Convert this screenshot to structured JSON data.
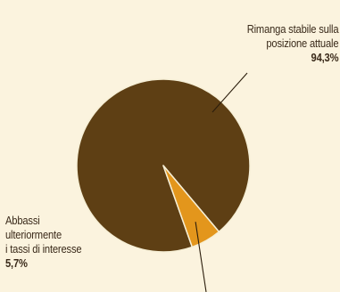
{
  "chart_data": {
    "type": "pie",
    "slices": [
      {
        "label_lines": [
          "Rimanga stabile sulla",
          "posizione attuale"
        ],
        "value": 94.3,
        "display": "94,3%",
        "color": "#5e3f14"
      },
      {
        "label_lines": [
          "Abbassi",
          "ulteriormente",
          "i tassi di interesse"
        ],
        "value": 5.7,
        "display": "5,7%",
        "color": "#e3961c"
      }
    ],
    "legend": "none",
    "slice_edge_color": "#f6efd6"
  }
}
